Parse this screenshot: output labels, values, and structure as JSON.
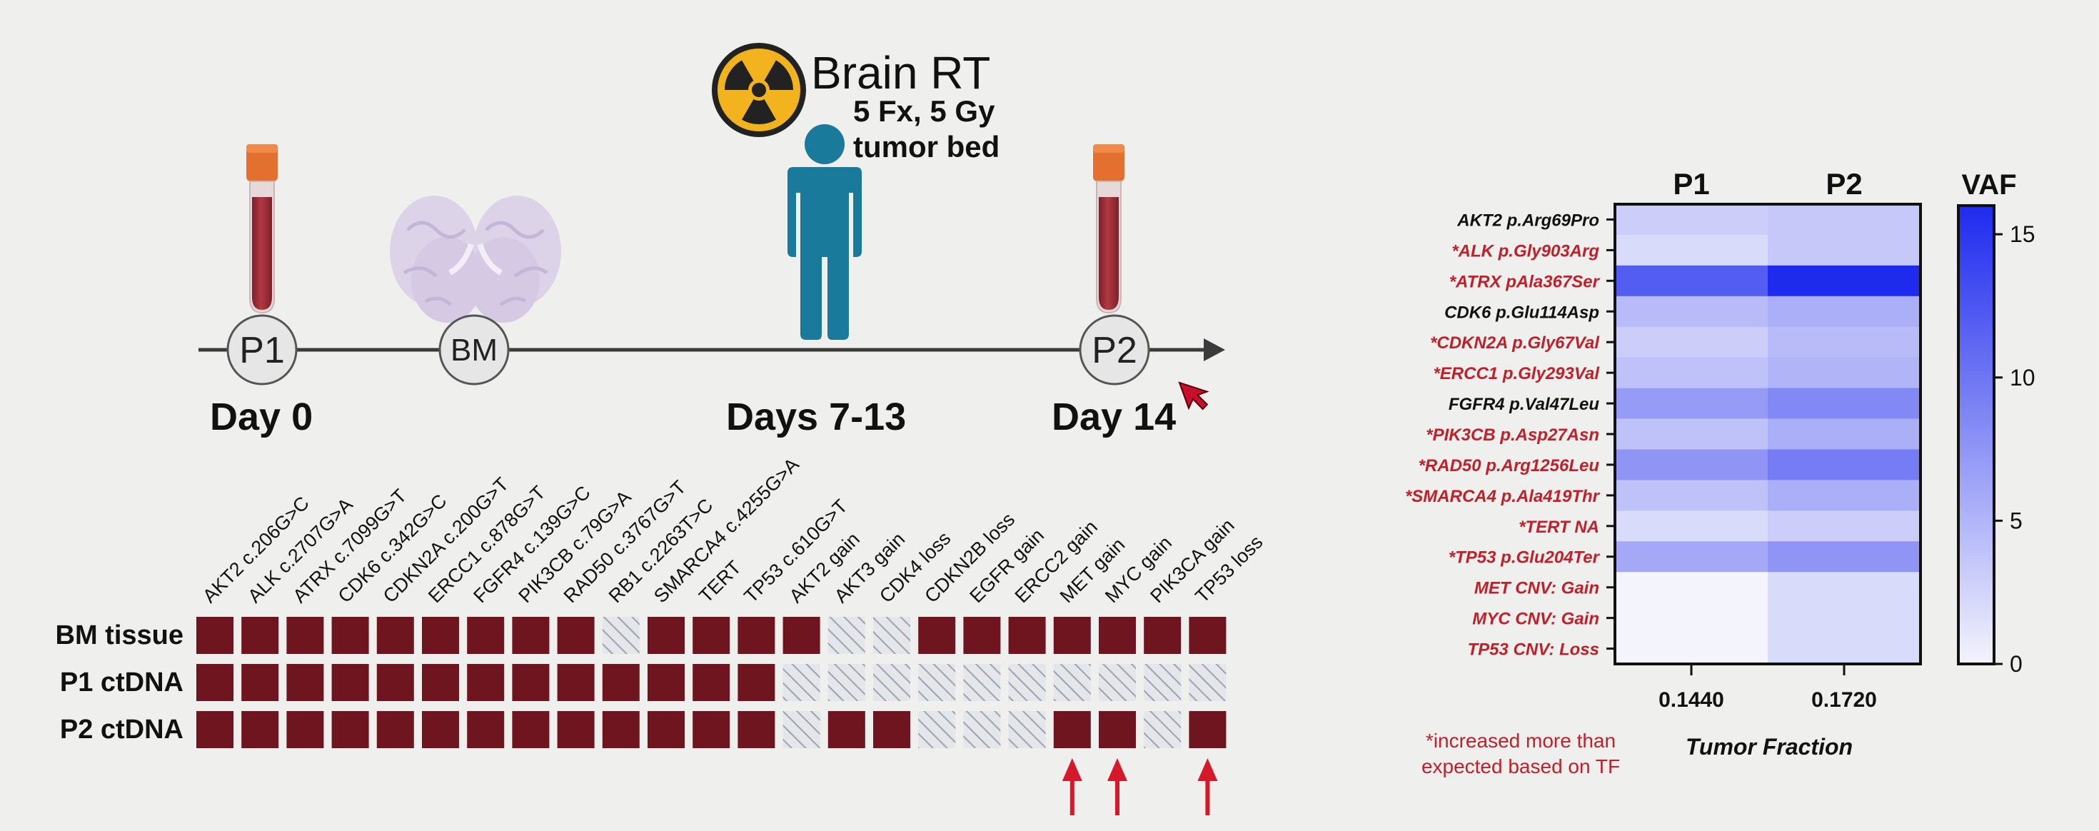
{
  "timeline": {
    "nodes": [
      {
        "label": "P1",
        "day": "Day 0"
      },
      {
        "label": "BM",
        "day": ""
      },
      {
        "label": "P2",
        "day": "Day 14"
      }
    ],
    "intervention": {
      "title": "Brain RT",
      "detail_line1": "5 Fx, 5 Gy",
      "detail_line2": "tumor bed",
      "day": "Days 7-13"
    },
    "icons": [
      "blood-tube-icon",
      "brain-icon",
      "radiation-icon",
      "person-icon",
      "blood-tube-icon"
    ],
    "colors": {
      "tube_cap": "#e3702f",
      "tube_blood": "#9c2f36",
      "person": "#1a7a9c",
      "radiation_bg": "#f2b31e",
      "brain": "#d9cfe6"
    }
  },
  "oncoprint": {
    "rows": [
      "BM tissue",
      "P1 ctDNA",
      "P2 ctDNA"
    ],
    "columns": [
      "AKT2 c.206G>C",
      "ALK c.2707G>A",
      "ATRX c.7099G>T",
      "CDK6 c.342G>C",
      "CDKN2A c.200G>T",
      "ERCC1 c.878G>T",
      "FGFR4 c.139G>C",
      "PIK3CB c.79G>A",
      "RAD50 c.3767G>T",
      "RB1 c.2263T>C",
      "SMARCA4 c.4255G>A",
      "TERT",
      "TP53 c.610G>T",
      "AKT2 gain",
      "AKT3 gain",
      "CDK4 loss",
      "CDKN2B loss",
      "EGFR gain",
      "ERCC2 gain",
      "MET gain",
      "MYC gain",
      "PIK3CA gain",
      "TP53 loss"
    ],
    "matrix": [
      [
        1,
        1,
        1,
        1,
        1,
        1,
        1,
        1,
        1,
        0,
        1,
        1,
        1,
        1,
        0,
        0,
        1,
        1,
        1,
        1,
        1,
        1,
        1
      ],
      [
        1,
        1,
        1,
        1,
        1,
        1,
        1,
        1,
        1,
        1,
        1,
        1,
        1,
        0,
        0,
        0,
        0,
        0,
        0,
        0,
        0,
        0,
        0
      ],
      [
        1,
        1,
        1,
        1,
        1,
        1,
        1,
        1,
        1,
        1,
        1,
        1,
        1,
        0,
        1,
        1,
        0,
        0,
        0,
        1,
        1,
        0,
        1
      ]
    ],
    "arrows_under_columns": [
      "MET gain",
      "MYC gain",
      "TP53 loss"
    ],
    "colors": {
      "present": "#6e1520",
      "absent_hatch": "#9aa3b0",
      "arrow": "#d6192a"
    }
  },
  "heatmap": {
    "columns": [
      "P1",
      "P2"
    ],
    "rows": [
      {
        "label": "AKT2 p.Arg69Pro",
        "highlight": false
      },
      {
        "label": "*ALK p.Gly903Arg",
        "highlight": true
      },
      {
        "label": "*ATRX pAla367Ser",
        "highlight": true
      },
      {
        "label": "CDK6 p.Glu114Asp",
        "highlight": false
      },
      {
        "label": "*CDKN2A p.Gly67Val",
        "highlight": true
      },
      {
        "label": "*ERCC1 p.Gly293Val",
        "highlight": true
      },
      {
        "label": "FGFR4 p.Val47Leu",
        "highlight": false
      },
      {
        "label": "*PIK3CB p.Asp27Asn",
        "highlight": true
      },
      {
        "label": "*RAD50 p.Arg1256Leu",
        "highlight": true
      },
      {
        "label": "*SMARCA4  p.Ala419Thr",
        "highlight": true
      },
      {
        "label": "*TERT NA",
        "highlight": true
      },
      {
        "label": "*TP53 p.Glu204Ter",
        "highlight": true
      },
      {
        "label": "MET CNV: Gain",
        "highlight": true
      },
      {
        "label": "MYC CNV: Gain",
        "highlight": true
      },
      {
        "label": "TP53 CNV: Loss",
        "highlight": true
      }
    ],
    "values": [
      [
        3.0,
        3.5
      ],
      [
        2.0,
        3.5
      ],
      [
        12.0,
        16.0
      ],
      [
        4.5,
        5.5
      ],
      [
        3.0,
        4.5
      ],
      [
        4.0,
        5.0
      ],
      [
        7.0,
        8.5
      ],
      [
        4.0,
        5.5
      ],
      [
        7.5,
        9.5
      ],
      [
        4.0,
        5.5
      ],
      [
        2.0,
        3.0
      ],
      [
        6.0,
        7.5
      ],
      [
        0,
        2.0
      ],
      [
        0,
        2.0
      ],
      [
        0,
        2.0
      ]
    ],
    "xticks": [
      "0.1440",
      "0.1720"
    ],
    "xlabel": "Tumor Fraction",
    "colorbar": {
      "title": "VAF",
      "ticks": [
        0,
        5,
        10,
        15
      ],
      "min": 0,
      "max": 16
    },
    "footnote_line1": "*increased more than",
    "footnote_line2": "expected based on TF",
    "colors": {
      "low": "#f4f4fc",
      "high": "#1e2aee",
      "highlight_text": "#c0202a",
      "normal_text": "#111111"
    }
  }
}
